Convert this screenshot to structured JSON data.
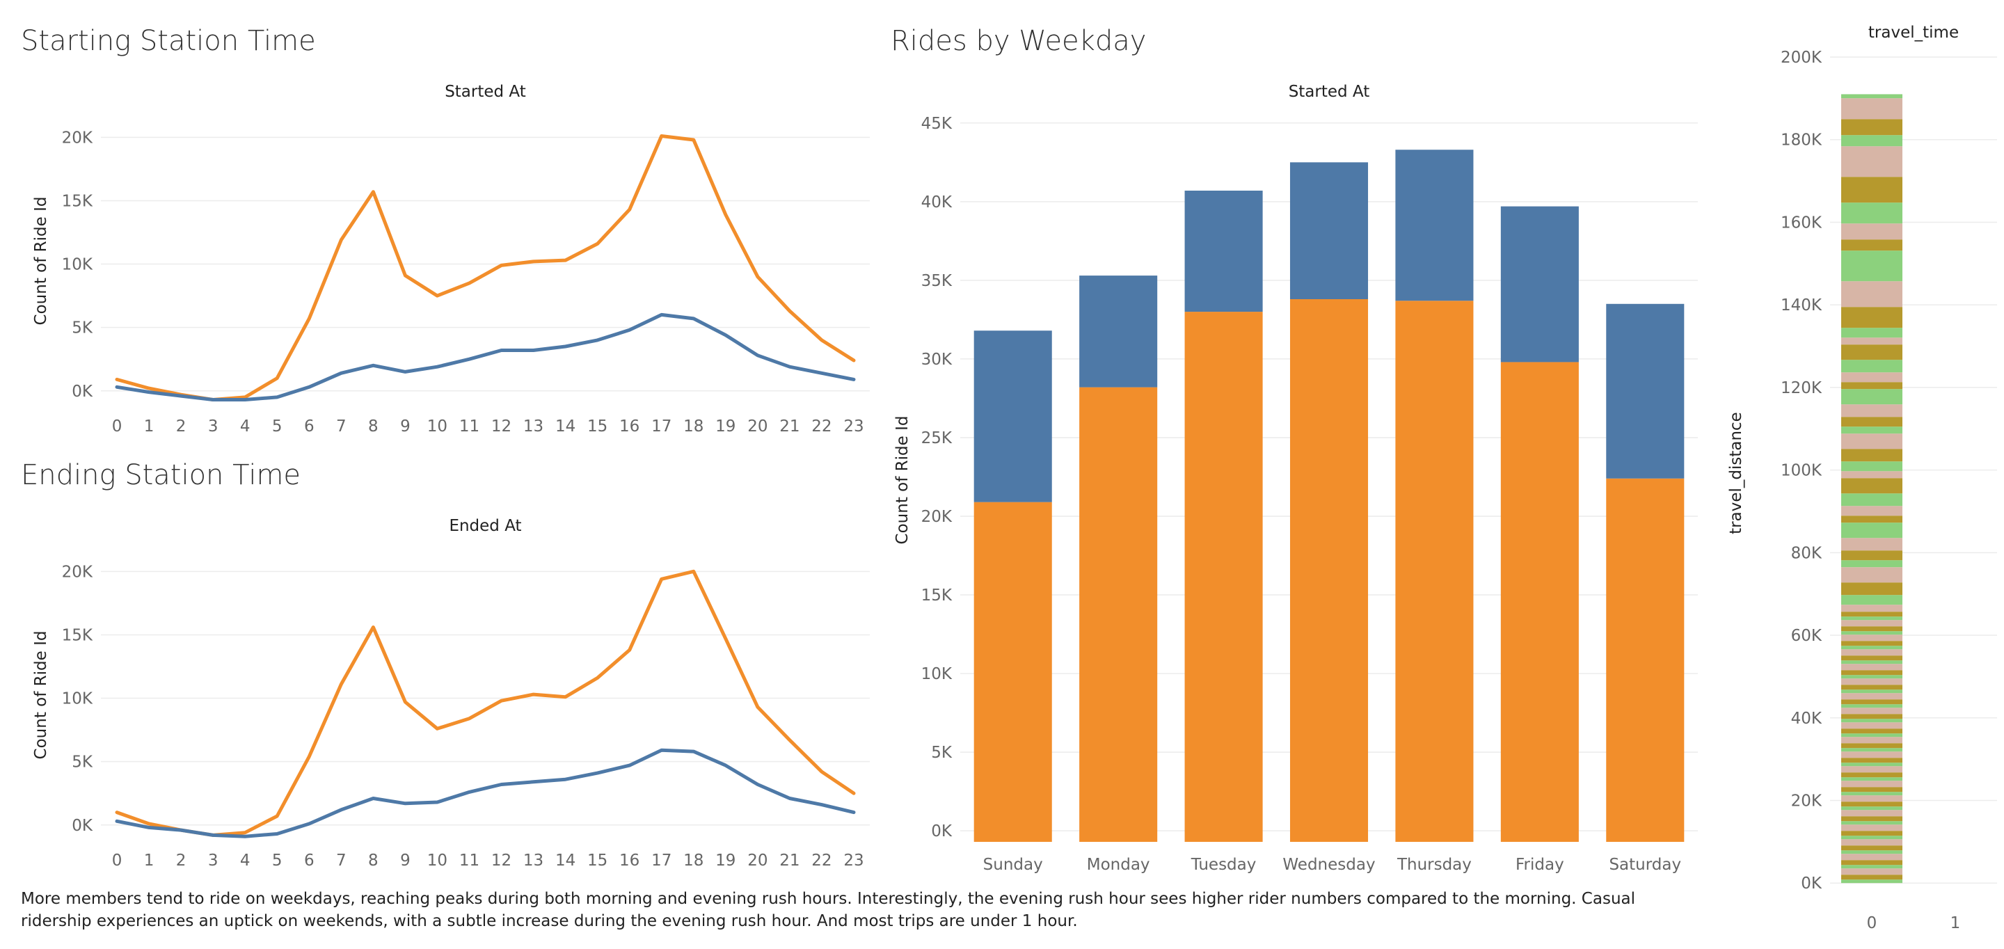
{
  "sections": {
    "starting_title": "Starting Station Time",
    "ending_title": "Ending Station Time",
    "weekday_title": "Rides by Weekday"
  },
  "footnote": "More members tend to ride on weekdays, reaching peaks during both morning and evening rush hours. Interestingly, the evening rush hour sees higher rider numbers compared to the morning. Casual ridership experiences an uptick on weekends, with a subtle increase during the evening rush hour. And most trips are under 1 hour.",
  "colors": {
    "orange": "#f28e2b",
    "blue": "#4e79a7",
    "palette": [
      "#8cd17d",
      "#9c755f",
      "#59a14f",
      "#79706e",
      "#e15759",
      "#ffbe7d",
      "#f1ce63",
      "#b6992d",
      "#d4a6c8",
      "#bab0ac",
      "#ff9d9a",
      "#fabfd2",
      "#86bcb6",
      "#a0cbe8",
      "#d7b5a6",
      "#499894",
      "#b07aa1",
      "#edc948",
      "#76b7b2",
      "#4e79a7",
      "#f28e2b"
    ]
  },
  "chart_data": [
    {
      "id": "starting",
      "type": "line",
      "title": "Started At",
      "ylabel": "Count of Ride Id",
      "x": [
        "0",
        "1",
        "2",
        "3",
        "4",
        "5",
        "6",
        "7",
        "8",
        "9",
        "10",
        "11",
        "12",
        "13",
        "14",
        "15",
        "16",
        "17",
        "18",
        "19",
        "20",
        "21",
        "22",
        "23"
      ],
      "ylim": [
        -1000,
        21500
      ],
      "yticks": [
        0,
        5000,
        10000,
        15000,
        20000
      ],
      "yticklabels": [
        "0K",
        "5K",
        "10K",
        "15K",
        "20K"
      ],
      "series": [
        {
          "color": "#f28e2b",
          "values": [
            900,
            200,
            -300,
            -700,
            -500,
            1000,
            5700,
            11900,
            15700,
            9100,
            7500,
            8500,
            9900,
            10200,
            10300,
            11600,
            14300,
            20100,
            19800,
            13900,
            9000,
            6300,
            4000,
            2400
          ]
        },
        {
          "color": "#4e79a7",
          "values": [
            300,
            -100,
            -400,
            -700,
            -700,
            -500,
            300,
            1400,
            2000,
            1500,
            1900,
            2500,
            3200,
            3200,
            3500,
            4000,
            4800,
            6000,
            5700,
            4400,
            2800,
            1900,
            1400,
            900
          ]
        }
      ]
    },
    {
      "id": "ending",
      "type": "line",
      "title": "Ended At",
      "ylabel": "Count of Ride Id",
      "x": [
        "0",
        "1",
        "2",
        "3",
        "4",
        "5",
        "6",
        "7",
        "8",
        "9",
        "10",
        "11",
        "12",
        "13",
        "14",
        "15",
        "16",
        "17",
        "18",
        "19",
        "20",
        "21",
        "22",
        "23"
      ],
      "ylim": [
        -1000,
        21500
      ],
      "yticks": [
        0,
        5000,
        10000,
        15000,
        20000
      ],
      "yticklabels": [
        "0K",
        "5K",
        "10K",
        "15K",
        "20K"
      ],
      "series": [
        {
          "color": "#f28e2b",
          "values": [
            1000,
            100,
            -400,
            -800,
            -600,
            700,
            5400,
            11100,
            15600,
            9700,
            7600,
            8400,
            9800,
            10300,
            10100,
            11600,
            13800,
            19400,
            20000,
            14700,
            9300,
            6700,
            4200,
            2500
          ]
        },
        {
          "color": "#4e79a7",
          "values": [
            300,
            -200,
            -400,
            -800,
            -900,
            -700,
            100,
            1200,
            2100,
            1700,
            1800,
            2600,
            3200,
            3400,
            3600,
            4100,
            4700,
            5900,
            5800,
            4700,
            3200,
            2100,
            1600,
            1000
          ]
        }
      ]
    },
    {
      "id": "weekday",
      "type": "bar",
      "stacked": true,
      "title": "Started At",
      "ylabel": "Count of Ride Id",
      "categories": [
        "Sunday",
        "Monday",
        "Tuesday",
        "Wednesday",
        "Thursday",
        "Friday",
        "Saturday"
      ],
      "ylim": [
        -700,
        45300
      ],
      "yticks": [
        0,
        5000,
        10000,
        15000,
        20000,
        25000,
        30000,
        35000,
        40000,
        45000
      ],
      "yticklabels": [
        "0K",
        "5K",
        "10K",
        "15K",
        "20K",
        "25K",
        "30K",
        "35K",
        "40K",
        "45K"
      ],
      "series": [
        {
          "color": "#f28e2b",
          "values": [
            20900,
            28200,
            33000,
            33800,
            33700,
            29800,
            22400
          ]
        },
        {
          "color": "#4e79a7",
          "values": [
            10900,
            7100,
            7700,
            8700,
            9600,
            9900,
            11100
          ]
        }
      ]
    },
    {
      "id": "travel",
      "type": "bar",
      "stacked": true,
      "title": "travel_time",
      "ylabel": "travel_distance",
      "categories": [
        "0",
        "1"
      ],
      "ylim": [
        -3000,
        200000
      ],
      "yticks": [
        0,
        20000,
        40000,
        60000,
        80000,
        100000,
        120000,
        140000,
        160000,
        180000,
        200000
      ],
      "yticklabels": [
        "0K",
        "20K",
        "40K",
        "60K",
        "80K",
        "100K",
        "120K",
        "140K",
        "160K",
        "180K",
        "200K"
      ],
      "total": 191000
    }
  ]
}
